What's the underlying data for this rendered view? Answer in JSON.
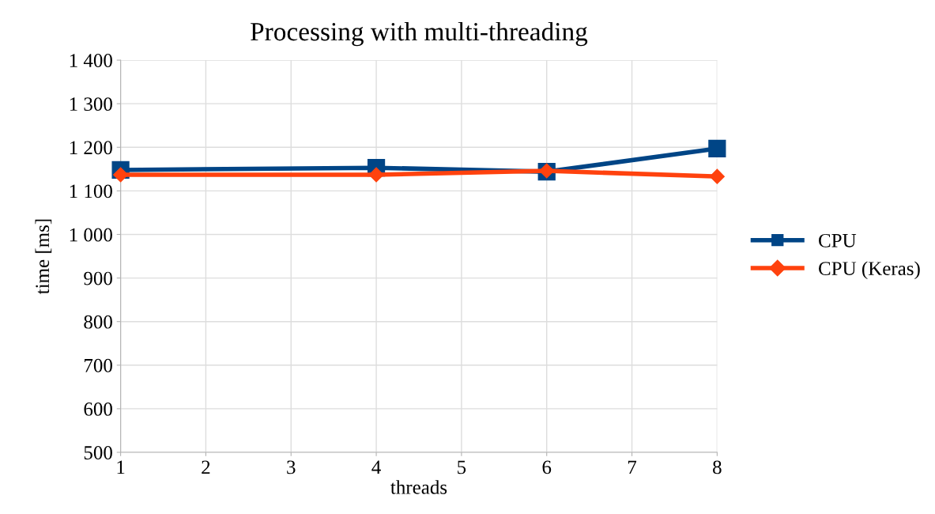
{
  "chart_data": {
    "type": "line",
    "title": "Processing with multi-threading",
    "xlabel": "threads",
    "ylabel": "time [ms]",
    "x": [
      1,
      4,
      6,
      8
    ],
    "series": [
      {
        "name": "CPU",
        "color": "#004586",
        "marker": "square",
        "values": [
          1148,
          1153,
          1144,
          1197
        ]
      },
      {
        "name": "CPU (Keras)",
        "color": "#ff420e",
        "marker": "diamond",
        "values": [
          1137,
          1137,
          1146,
          1133
        ]
      }
    ],
    "xlim": [
      1,
      8
    ],
    "xticks": [
      1,
      2,
      3,
      4,
      5,
      6,
      7,
      8
    ],
    "ylim": [
      500,
      1400
    ],
    "yticks": [
      500,
      600,
      700,
      800,
      900,
      {
        "value": 1000,
        "label": "1 000"
      },
      {
        "value": 1100,
        "label": "1 100"
      },
      {
        "value": 1200,
        "label": "1 200"
      },
      {
        "value": 1300,
        "label": "1 300"
      },
      {
        "value": 1400,
        "label": "1 400"
      }
    ],
    "grid": true,
    "legend": "right",
    "line_style": "solid"
  }
}
